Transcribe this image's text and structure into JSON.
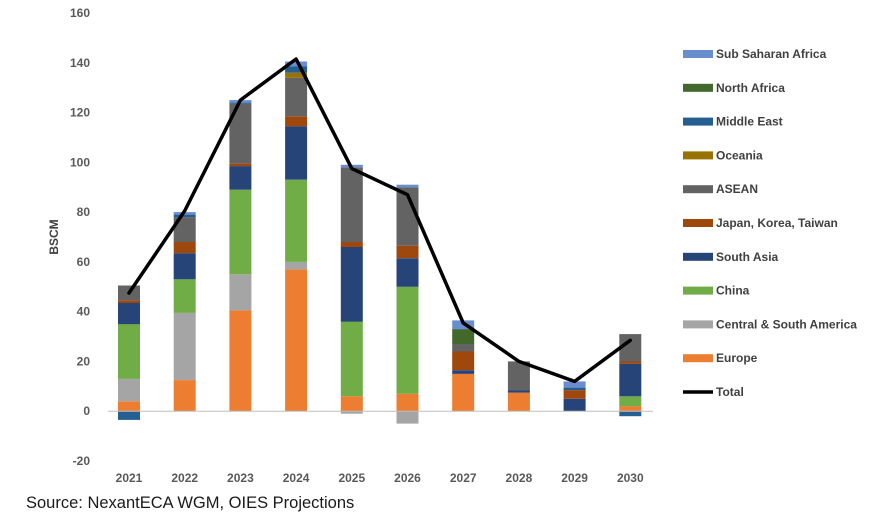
{
  "chart_data": {
    "type": "bar",
    "stacked": true,
    "ylabel": "BSCM",
    "xlabel": "",
    "ylim": [
      -20,
      160
    ],
    "yticks": [
      -20,
      0,
      20,
      40,
      60,
      80,
      100,
      120,
      140,
      160
    ],
    "categories": [
      "2021",
      "2022",
      "2023",
      "2024",
      "2025",
      "2026",
      "2027",
      "2028",
      "2029",
      "2030"
    ],
    "series": [
      {
        "name": "Europe",
        "color": "#ED7D31",
        "values": [
          4,
          12.5,
          40.5,
          57,
          6,
          7,
          15,
          7.5,
          0,
          2
        ]
      },
      {
        "name": "Central & South America",
        "color": "#A5A5A5",
        "values": [
          9,
          27,
          14.5,
          3,
          -1,
          -5,
          0,
          0,
          0,
          0
        ]
      },
      {
        "name": "China",
        "color": "#70AD47",
        "values": [
          22,
          13.5,
          34,
          33,
          30,
          43,
          0,
          0,
          0,
          4
        ]
      },
      {
        "name": "South Asia",
        "color": "#264478",
        "values": [
          8.5,
          10.5,
          9.5,
          21.5,
          30,
          11.5,
          1.5,
          1,
          5,
          13
        ]
      },
      {
        "name": "Japan, Korea, Taiwan",
        "color": "#9E480E",
        "values": [
          1,
          4.5,
          1,
          4,
          2,
          5,
          7.5,
          0,
          3.5,
          1
        ]
      },
      {
        "name": "ASEAN",
        "color": "#636363",
        "values": [
          6,
          10,
          24,
          15.5,
          30,
          23.5,
          3,
          11.5,
          0,
          11
        ]
      },
      {
        "name": "Oceania",
        "color": "#997300",
        "values": [
          0,
          0,
          0,
          2,
          0,
          0,
          0,
          0,
          0,
          0
        ]
      },
      {
        "name": "Middle East",
        "color": "#255E91",
        "values": [
          -3.5,
          1,
          0.5,
          2.5,
          0,
          0,
          0,
          0,
          1,
          -2
        ]
      },
      {
        "name": "North Africa",
        "color": "#43682B",
        "values": [
          0,
          0,
          0,
          0,
          0,
          0,
          6,
          0,
          0,
          0
        ]
      },
      {
        "name": "Sub Saharan Africa",
        "color": "#698ED0",
        "values": [
          0,
          1,
          1,
          2,
          1,
          1,
          3.5,
          0,
          2.5,
          0
        ]
      }
    ],
    "line": {
      "name": "Total",
      "color": "#000000",
      "values": [
        47.5,
        80.5,
        125,
        141.5,
        97.5,
        87,
        35.5,
        20,
        12,
        28.5
      ]
    },
    "legend_position": "right",
    "grid": false
  },
  "source": "Source: NexantECA WGM, OIES Projections"
}
